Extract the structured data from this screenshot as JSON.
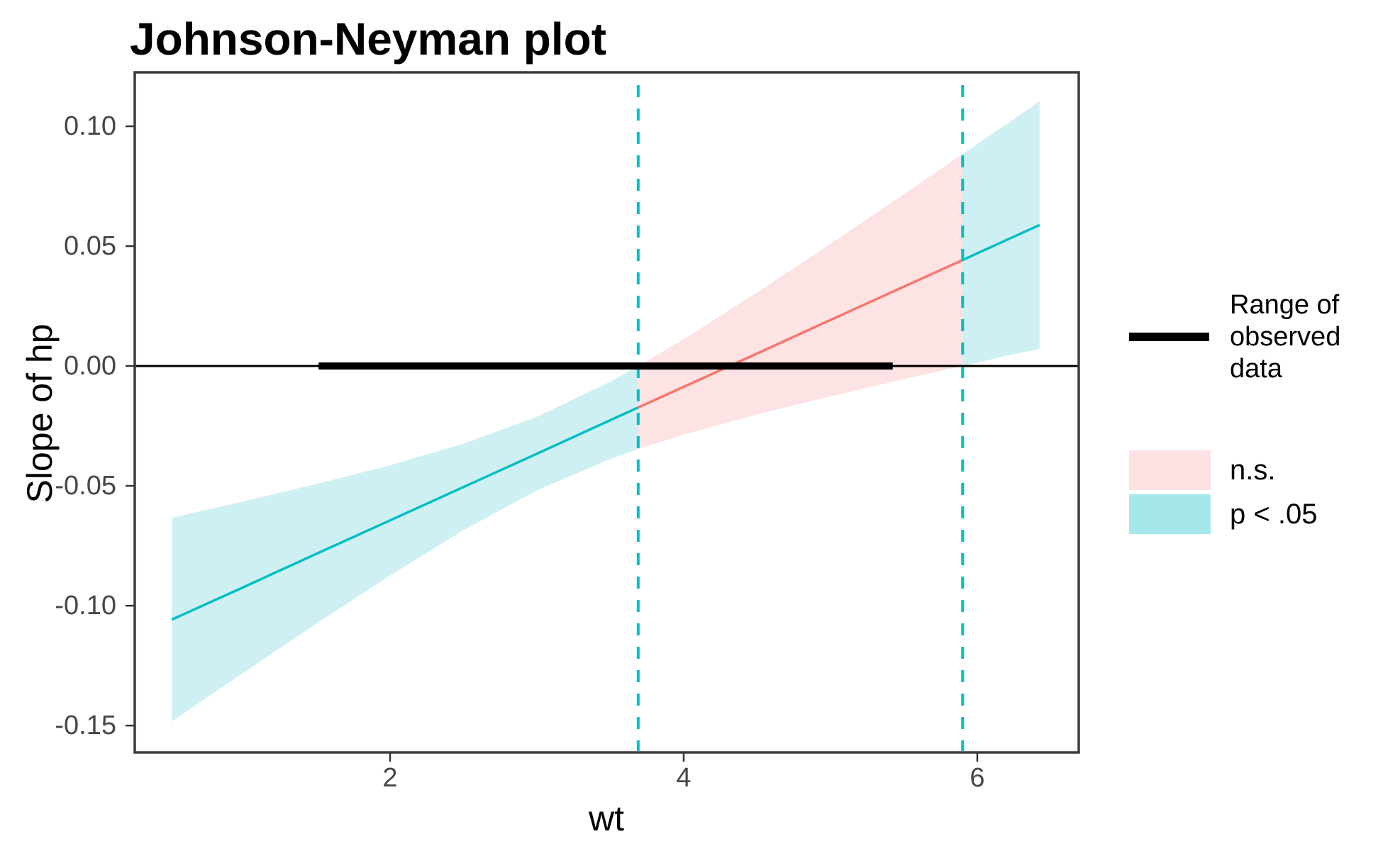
{
  "chart_data": {
    "type": "line",
    "title": "Johnson-Neyman plot",
    "xlabel": "wt",
    "ylabel": "Slope of hp",
    "grid": false,
    "xlim": [
      0.2609,
      6.6909
    ],
    "ylim": [
      -0.1612,
      0.1225
    ],
    "x_ticks": {
      "values": [
        2,
        4,
        6
      ],
      "labels": [
        "2",
        "4",
        "6"
      ]
    },
    "y_ticks": {
      "values": [
        0.1,
        0.05,
        0.0,
        -0.05,
        -0.1,
        -0.15
      ],
      "labels": [
        "0.10",
        "0.05",
        "0.00",
        "-0.05",
        "-0.10",
        "-0.15"
      ]
    },
    "x": [
      0.513,
      1.0,
      1.5,
      2.0,
      2.5,
      3.0,
      3.5,
      3.69,
      4.0,
      4.5,
      5.0,
      5.5,
      5.9,
      6.0,
      6.2,
      6.424
    ],
    "series": [
      {
        "name": "slope",
        "values": [
          -0.1058,
          -0.0923,
          -0.0783,
          -0.0644,
          -0.0505,
          -0.0366,
          -0.0226,
          -0.0173,
          -0.0087,
          0.0052,
          0.0192,
          0.0331,
          0.0442,
          0.047,
          0.0526,
          0.0588
        ]
      },
      {
        "name": "ci_lower",
        "values": [
          -0.1483,
          -0.128,
          -0.1074,
          -0.0874,
          -0.0685,
          -0.0519,
          -0.0388,
          -0.0346,
          -0.0286,
          -0.0202,
          -0.0127,
          -0.0055,
          0.0,
          0.0014,
          0.0043,
          0.0071
        ]
      },
      {
        "name": "ci_upper",
        "values": [
          -0.0633,
          -0.0565,
          -0.0492,
          -0.0414,
          -0.0324,
          -0.0212,
          -0.0065,
          0.0,
          0.0112,
          0.0307,
          0.051,
          0.0717,
          0.0884,
          0.0926,
          0.1009,
          0.1105
        ]
      }
    ],
    "segments": [
      {
        "name": "significant-left",
        "from": 0,
        "to": 7,
        "label": "p < .05",
        "line_color_key": "sig_line",
        "fill_color_key": "sig_fill"
      },
      {
        "name": "non-significant",
        "from": 7,
        "to": 12,
        "label": "n.s.",
        "line_color_key": "ns_line",
        "fill_color_key": "ns_fill"
      },
      {
        "name": "significant-right",
        "from": 12,
        "to": 15,
        "label": "p < .05",
        "line_color_key": "sig_line",
        "fill_color_key": "sig_fill"
      }
    ],
    "jn_interval": [
      3.69,
      5.9
    ],
    "observed_range": [
      1.513,
      5.424
    ],
    "zero_line": 0,
    "colors": {
      "sig_line": "#00BFC4",
      "ns_line": "#F8766D",
      "sig_fill": "#CFF0F2",
      "ns_fill": "#FDE3E3",
      "jn_dashed_line": "#00BFC4",
      "observed_line": "#000000",
      "zero_line": "#000000",
      "panel_border": "#3B3B3B",
      "tick_mark": "#333333",
      "tick_label": "#474747",
      "legend_sig_fill": "#A6E8EA",
      "legend_ns_fill": "#FDE1E3"
    }
  },
  "legend": {
    "position": "right",
    "range_label": "Range of observed data",
    "ns_label": "n.s.",
    "sig_label": "p < .05"
  }
}
